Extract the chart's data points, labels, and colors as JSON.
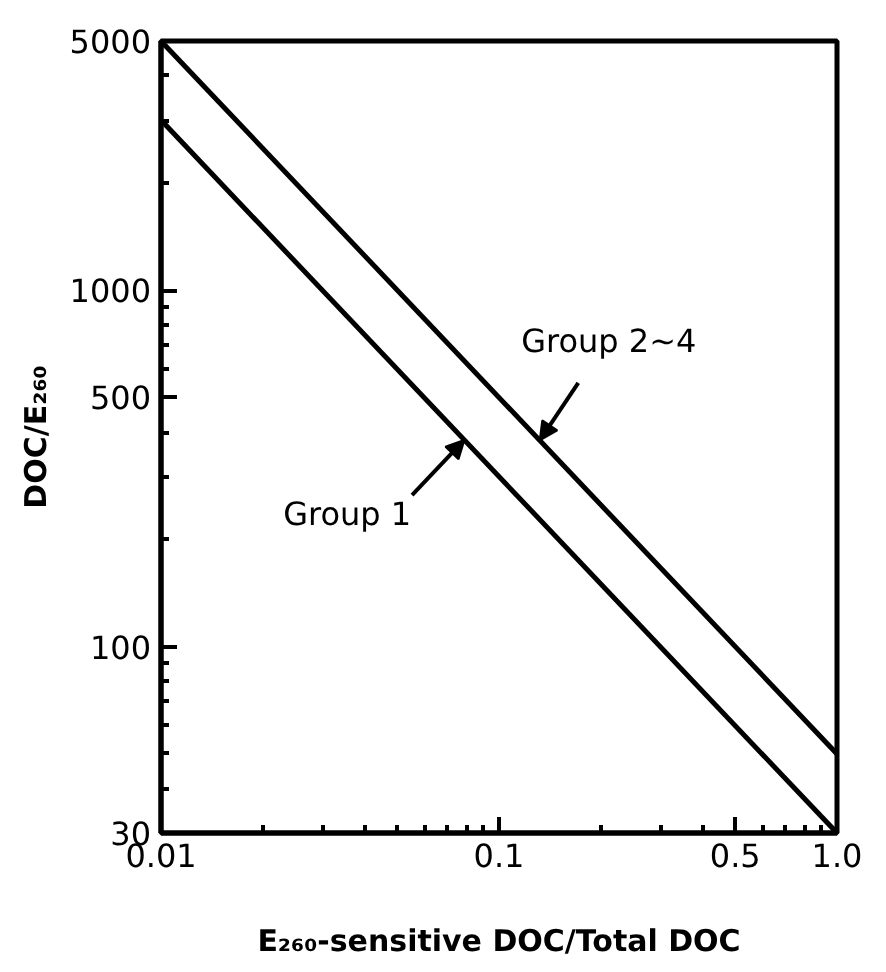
{
  "chart_data": {
    "type": "line",
    "xlabel": "E₂₆₀-sensitive DOC/Total DOC",
    "ylabel": "DOC/E₂₆₀",
    "log": "xy",
    "grid": false,
    "marker": "none",
    "line_style": "solid",
    "xlim": [
      0.01,
      1.0
    ],
    "xticks": [
      0.01,
      0.1,
      0.5,
      {
        "value": 1.0,
        "label": "1.0"
      }
    ],
    "ylim": [
      30,
      5000
    ],
    "yticks": [
      30,
      100,
      500,
      1000,
      5000
    ],
    "x": [
      0.01,
      1.0
    ],
    "series": [
      {
        "color": "#000000",
        "values": [
          5000,
          50
        ]
      },
      {
        "color": "#000000",
        "values": [
          3000,
          30
        ]
      }
    ],
    "annotations": [
      {
        "text": "Group 2~4",
        "x": 0.132,
        "y": 379
      },
      {
        "text": "Group 1",
        "x": 0.079,
        "y": 380
      }
    ]
  }
}
